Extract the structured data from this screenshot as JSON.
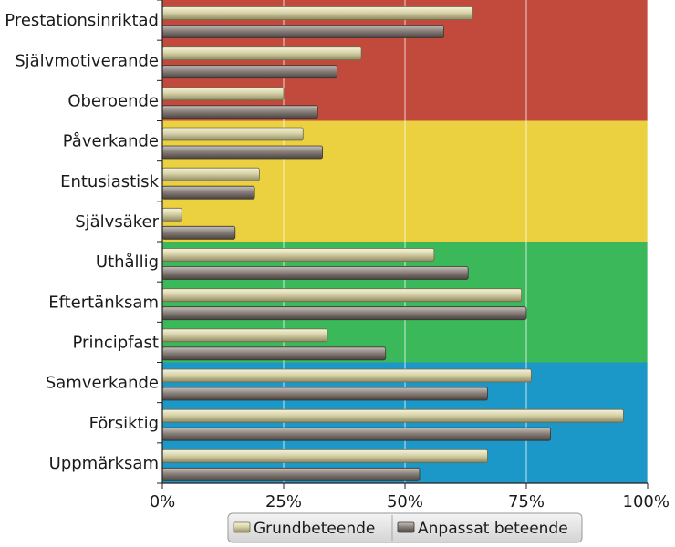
{
  "chart_data": {
    "type": "bar",
    "orientation": "horizontal",
    "categories": [
      "Prestationsinriktad",
      "Självmotiverande",
      "Oberoende",
      "Påverkande",
      "Entusiastisk",
      "Självsäker",
      "Uthållig",
      "Eftertänksam",
      "Principfast",
      "Samverkande",
      "Försiktig",
      "Uppmärksam"
    ],
    "series": [
      {
        "name": "Grundbeteende",
        "color": "#d8d3a8",
        "values": [
          64,
          41,
          25,
          29,
          20,
          4,
          56,
          74,
          34,
          76,
          95,
          67
        ]
      },
      {
        "name": "Anpassat beteende",
        "color": "#8a817b",
        "values": [
          58,
          36,
          32,
          33,
          19,
          15,
          63,
          75,
          46,
          67,
          80,
          53
        ]
      }
    ],
    "xlim": [
      0,
      100
    ],
    "x_ticks": [
      0,
      25,
      50,
      75,
      100
    ],
    "x_tick_labels": [
      "0%",
      "25%",
      "50%",
      "75%",
      "100%"
    ],
    "bands": [
      {
        "from_category": 0,
        "to_category": 2,
        "color": "#c24a3c"
      },
      {
        "from_category": 3,
        "to_category": 5,
        "color": "#ebd13f"
      },
      {
        "from_category": 6,
        "to_category": 8,
        "color": "#3bb85a"
      },
      {
        "from_category": 9,
        "to_category": 11,
        "color": "#1b97c8"
      }
    ],
    "grid": true,
    "legend_position": "bottom-center",
    "title": "",
    "xlabel": "",
    "ylabel": ""
  }
}
